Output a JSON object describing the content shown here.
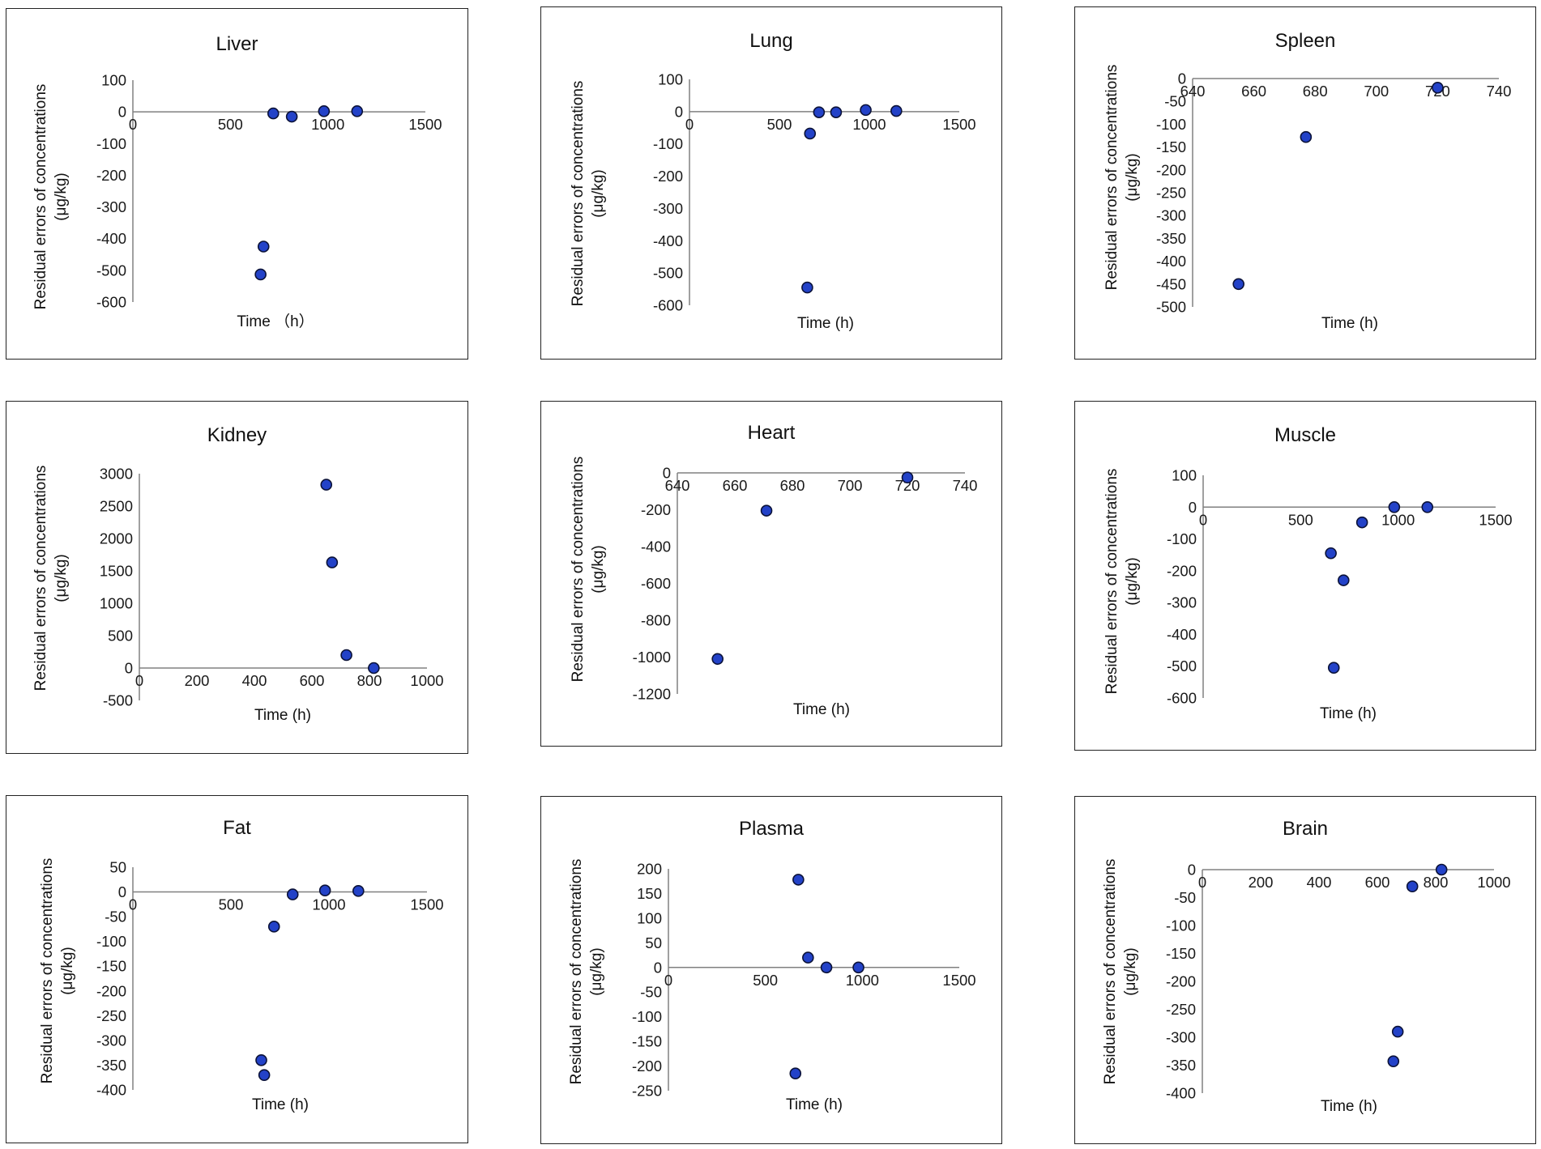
{
  "chart_data": [
    {
      "type": "scatter",
      "title": "Liver",
      "ylabel_line1": "Residual errors of concentrations",
      "ylabel_line2": "(μg/kg)",
      "xlabel": "Time （h）",
      "xlim": [
        0,
        1500
      ],
      "ylim": [
        -600,
        100
      ],
      "xticks": [
        0,
        500,
        1000,
        1500
      ],
      "yticks": [
        100,
        0,
        -100,
        -200,
        -300,
        -400,
        -500,
        -600
      ],
      "points": [
        [
          720,
          -5
        ],
        [
          815,
          -15
        ],
        [
          980,
          2
        ],
        [
          1150,
          2
        ],
        [
          670,
          -425
        ],
        [
          655,
          -513
        ]
      ]
    },
    {
      "type": "scatter",
      "title": "Lung",
      "ylabel_line1": "Residual errors of concentrations",
      "ylabel_line2": "(μg/kg)",
      "xlabel": "Time (h)",
      "xlim": [
        0,
        1500
      ],
      "ylim": [
        -600,
        100
      ],
      "xticks": [
        0,
        500,
        1000,
        1500
      ],
      "yticks": [
        100,
        0,
        -100,
        -200,
        -300,
        -400,
        -500,
        -600
      ],
      "points": [
        [
          720,
          -2
        ],
        [
          815,
          -2
        ],
        [
          980,
          5
        ],
        [
          1150,
          2
        ],
        [
          670,
          -68
        ],
        [
          655,
          -545
        ]
      ]
    },
    {
      "type": "scatter",
      "title": "Spleen",
      "ylabel_line1": "Residual errors of concentrations",
      "ylabel_line2": "(μg/kg)",
      "xlabel": "Time (h)",
      "xlim": [
        640,
        740
      ],
      "ylim": [
        -500,
        0
      ],
      "xticks": [
        640,
        660,
        680,
        700,
        720,
        740
      ],
      "yticks": [
        0,
        -50,
        -100,
        -150,
        -200,
        -250,
        -300,
        -350,
        -400,
        -450,
        -500
      ],
      "points": [
        [
          720,
          -20
        ],
        [
          677,
          -128
        ],
        [
          655,
          -450
        ]
      ]
    },
    {
      "type": "scatter",
      "title": "Kidney",
      "ylabel_line1": "Residual errors of concentrations",
      "ylabel_line2": "(μg/kg)",
      "xlabel": "Time (h)",
      "xlim": [
        0,
        1000
      ],
      "ylim": [
        -500,
        3000
      ],
      "xticks": [
        0,
        200,
        400,
        600,
        800,
        1000
      ],
      "yticks": [
        3000,
        2500,
        2000,
        1500,
        1000,
        500,
        0,
        -500
      ],
      "points": [
        [
          650,
          2830
        ],
        [
          670,
          1630
        ],
        [
          720,
          200
        ],
        [
          815,
          0
        ]
      ]
    },
    {
      "type": "scatter",
      "title": "Heart",
      "ylabel_line1": "Residual errors of concentrations",
      "ylabel_line2": "(μg/kg)",
      "xlabel": "Time (h)",
      "xlim": [
        640,
        740
      ],
      "ylim": [
        -1200,
        0
      ],
      "xticks": [
        640,
        660,
        680,
        700,
        720,
        740
      ],
      "yticks": [
        0,
        -200,
        -400,
        -600,
        -800,
        -1000,
        -1200
      ],
      "points": [
        [
          720,
          -25
        ],
        [
          671,
          -205
        ],
        [
          654,
          -1010
        ]
      ]
    },
    {
      "type": "scatter",
      "title": "Muscle",
      "ylabel_line1": "Residual errors of concentrations",
      "ylabel_line2": "(μg/kg)",
      "xlabel": "Time (h)",
      "xlim": [
        0,
        1500
      ],
      "ylim": [
        -600,
        100
      ],
      "xticks": [
        0,
        500,
        1000,
        1500
      ],
      "yticks": [
        100,
        0,
        -100,
        -200,
        -300,
        -400,
        -500,
        -600
      ],
      "points": [
        [
          815,
          -48
        ],
        [
          980,
          0
        ],
        [
          1150,
          0
        ],
        [
          655,
          -145
        ],
        [
          720,
          -230
        ],
        [
          670,
          -505
        ]
      ]
    },
    {
      "type": "scatter",
      "title": "Fat",
      "ylabel_line1": "Residual errors of concentrations",
      "ylabel_line2": "(μg/kg)",
      "xlabel": "Time (h)",
      "xlim": [
        0,
        1500
      ],
      "ylim": [
        -400,
        50
      ],
      "xticks": [
        0,
        500,
        1000,
        1500
      ],
      "yticks": [
        50,
        0,
        -50,
        -100,
        -150,
        -200,
        -250,
        -300,
        -350,
        -400
      ],
      "points": [
        [
          815,
          -5
        ],
        [
          980,
          3
        ],
        [
          1150,
          2
        ],
        [
          720,
          -70
        ],
        [
          655,
          -340
        ],
        [
          670,
          -370
        ]
      ]
    },
    {
      "type": "scatter",
      "title": "Plasma",
      "ylabel_line1": "Residual errors of concentrations",
      "ylabel_line2": "(μg/kg)",
      "xlabel": "Time (h)",
      "xlim": [
        0,
        1500
      ],
      "ylim": [
        -250,
        200
      ],
      "xticks": [
        0,
        500,
        1000,
        1500
      ],
      "yticks": [
        200,
        150,
        100,
        50,
        0,
        -50,
        -100,
        -150,
        -200,
        -250
      ],
      "points": [
        [
          670,
          178
        ],
        [
          720,
          20
        ],
        [
          815,
          0
        ],
        [
          980,
          0
        ],
        [
          655,
          -215
        ]
      ]
    },
    {
      "type": "scatter",
      "title": "Brain",
      "ylabel_line1": "Residual errors of concentrations",
      "ylabel_line2": "(μg/kg)",
      "xlabel": "Time (h)",
      "xlim": [
        0,
        1000
      ],
      "ylim": [
        -400,
        0
      ],
      "xticks": [
        0,
        200,
        400,
        600,
        800,
        1000
      ],
      "yticks": [
        0,
        -50,
        -100,
        -150,
        -200,
        -250,
        -300,
        -350,
        -400
      ],
      "points": [
        [
          820,
          0
        ],
        [
          720,
          -30
        ],
        [
          670,
          -290
        ],
        [
          655,
          -343
        ]
      ]
    }
  ],
  "style": {
    "marker_fill": "#2342c8",
    "marker_stroke": "#0b1238",
    "axis_color": "#808080"
  }
}
